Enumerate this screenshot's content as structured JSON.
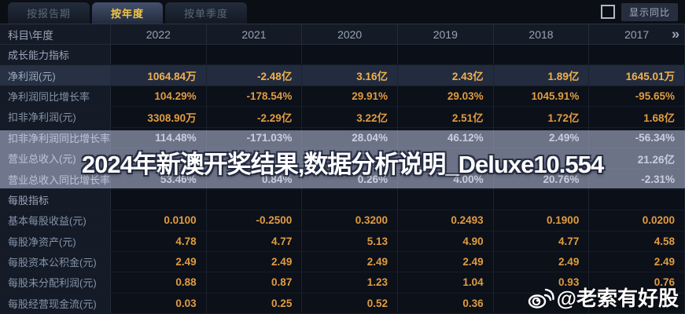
{
  "tabs": [
    {
      "label": "按报告期",
      "active": false
    },
    {
      "label": "按年度",
      "active": true
    },
    {
      "label": "按单季度",
      "active": false
    }
  ],
  "toolbar": {
    "show_yoy_label": "显示同比",
    "checkbox_checked": false
  },
  "table": {
    "corner_label": "科目\\年度",
    "more_arrow": "»",
    "years": [
      "2022",
      "2021",
      "2020",
      "2019",
      "2018",
      "2017"
    ],
    "rows": [
      {
        "type": "section",
        "label": "成长能力指标"
      },
      {
        "label": "净利润(元)",
        "highlight": true,
        "values": [
          "1064.84万",
          "-2.48亿",
          "3.16亿",
          "2.43亿",
          "1.89亿",
          "1645.01万"
        ]
      },
      {
        "label": "净利润同比增长率",
        "values": [
          "104.29%",
          "-178.54%",
          "29.91%",
          "29.03%",
          "1045.91%",
          "-95.65%"
        ]
      },
      {
        "label": "扣非净利润(元)",
        "values": [
          "3308.90万",
          "-2.29亿",
          "3.22亿",
          "2.51亿",
          "1.72亿",
          "1.68亿"
        ]
      },
      {
        "label": "扣非净利润同比增长率",
        "values": [
          "114.48%",
          "-171.03%",
          "28.04%",
          "46.12%",
          "2.49%",
          "-56.34%"
        ]
      },
      {
        "label": "营业总收入(元)",
        "values": [
          "",
          "",
          "",
          "",
          "",
          "21.26亿"
        ]
      },
      {
        "label": "营业总收入同比增长率",
        "values": [
          "53.46%",
          "0.84%",
          "0.26%",
          "4.00%",
          "20.76%",
          "-2.31%"
        ]
      },
      {
        "type": "section",
        "label": "每股指标"
      },
      {
        "label": "基本每股收益(元)",
        "values": [
          "0.0100",
          "-0.2500",
          "0.3200",
          "0.2493",
          "0.1900",
          "0.0200"
        ]
      },
      {
        "label": "每股净资产(元)",
        "values": [
          "4.78",
          "4.77",
          "5.13",
          "4.90",
          "4.77",
          "4.58"
        ]
      },
      {
        "label": "每股资本公积金(元)",
        "values": [
          "2.49",
          "2.49",
          "2.49",
          "2.49",
          "2.49",
          "2.49"
        ]
      },
      {
        "label": "每股未分配利润(元)",
        "values": [
          "0.88",
          "0.87",
          "1.23",
          "1.04",
          "0.93",
          "0.76"
        ]
      },
      {
        "label": "每股经营现金流(元)",
        "values": [
          "0.03",
          "0.25",
          "0.52",
          "0.36",
          "",
          ""
        ]
      }
    ]
  },
  "watermarks": {
    "headline": "2024年新澳开奖结果,数据分析说明_Deluxe10.554",
    "weibo_handle": "@老索有好股"
  },
  "colors": {
    "page_bg": "#070a0f",
    "accent_value": "#e09c42",
    "highlight_value": "#f2b04e",
    "row_highlight_bg": "#222c3e",
    "active_tab_text": "#f3c645",
    "header_text": "#97a3b6",
    "label_text": "#8493a9",
    "watermark_band": "#a8b0cc"
  }
}
